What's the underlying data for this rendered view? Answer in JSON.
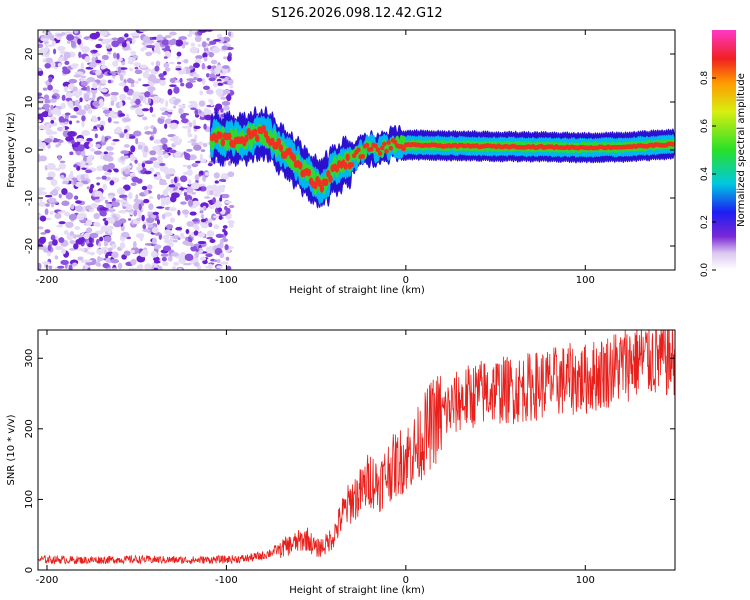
{
  "title": "S126.2026.098.12.42.G12",
  "chart_data": [
    {
      "type": "heatmap",
      "title": "S126.2026.098.12.42.G12",
      "xlabel": "Height of straight line (km)",
      "ylabel": "Frequency (Hz)",
      "xlim": [
        -205,
        150
      ],
      "ylim": [
        -25,
        25
      ],
      "xticks": [
        -200,
        -100,
        0,
        100
      ],
      "xtick_labels": [
        "-200",
        "-100",
        "0",
        "100"
      ],
      "yticks": [
        -20,
        -10,
        0,
        10,
        20
      ],
      "ytick_labels": [
        "-20",
        "-10",
        "0",
        "10",
        "20"
      ],
      "colorbar": {
        "label": "Normalized spectral amplitude",
        "range": [
          0,
          1
        ],
        "ticks": [
          0.0,
          0.2,
          0.4,
          0.6,
          0.8
        ],
        "tick_labels": [
          "0.0",
          "0.2",
          "0.4",
          "0.6",
          "0.8"
        ]
      },
      "ridge": {
        "x": [
          -105,
          -95,
          -85,
          -78,
          -72,
          -65,
          -58,
          -52,
          -48,
          -44,
          -40,
          -35,
          -30,
          -25,
          -20,
          -15,
          -10,
          -5,
          0,
          10,
          20,
          40,
          60,
          80,
          100,
          120,
          150
        ],
        "y": [
          2.5,
          2.0,
          3.0,
          3.5,
          1.0,
          -1.0,
          -4.0,
          -6.0,
          -7.5,
          -6.0,
          -4.0,
          -3.0,
          -2.0,
          -0.5,
          0.5,
          0.0,
          0.8,
          1.0,
          1.0,
          1.0,
          0.9,
          0.8,
          0.7,
          0.6,
          0.5,
          0.6,
          1.2
        ]
      }
    },
    {
      "type": "line",
      "xlabel": "Height of straight line (km)",
      "ylabel": "SNR (10 * v/v)",
      "xlim": [
        -205,
        150
      ],
      "ylim": [
        0,
        340
      ],
      "xticks": [
        -200,
        -100,
        0,
        100
      ],
      "xtick_labels": [
        "-200",
        "-100",
        "0",
        "100"
      ],
      "yticks": [
        0,
        100,
        200,
        300
      ],
      "ytick_labels": [
        "0",
        "100",
        "200",
        "300"
      ],
      "series": [
        {
          "name": "SNR",
          "color": "#e8201c",
          "x": [
            -205,
            -180,
            -150,
            -120,
            -100,
            -90,
            -80,
            -75,
            -70,
            -65,
            -60,
            -55,
            -50,
            -45,
            -40,
            -35,
            -30,
            -25,
            -20,
            -15,
            -10,
            -5,
            0,
            5,
            10,
            15,
            20,
            30,
            40,
            50,
            60,
            70,
            80,
            90,
            100,
            110,
            120,
            130,
            140,
            150
          ],
          "values": [
            15,
            14,
            15,
            14,
            15,
            16,
            20,
            25,
            30,
            35,
            40,
            45,
            30,
            35,
            50,
            80,
            100,
            110,
            130,
            120,
            140,
            150,
            160,
            170,
            190,
            210,
            220,
            240,
            250,
            255,
            255,
            260,
            265,
            270,
            270,
            280,
            290,
            300,
            300,
            300
          ]
        }
      ],
      "noise": 0.18
    }
  ]
}
